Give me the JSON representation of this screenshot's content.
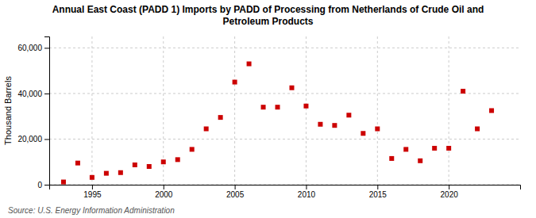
{
  "chart_data": {
    "type": "scatter",
    "title": "Annual East Coast (PADD 1) Imports by PADD of Processing from Netherlands of Crude Oil and\nPetroleum Products",
    "y_label": "Thousand Barrels",
    "source": "Source: U.S. Energy Information Administration",
    "x": [
      1993,
      1994,
      1995,
      1996,
      1997,
      1998,
      1999,
      2000,
      2001,
      2002,
      2003,
      2004,
      2005,
      2006,
      2007,
      2008,
      2009,
      2010,
      2011,
      2012,
      2013,
      2014,
      2015,
      2016,
      2017,
      2018,
      2019,
      2020,
      2021,
      2022,
      2023
    ],
    "values": [
      1200,
      9500,
      3200,
      5000,
      5300,
      8700,
      8000,
      10000,
      11000,
      15500,
      24500,
      29500,
      45000,
      53000,
      34000,
      34000,
      42500,
      34500,
      26500,
      26000,
      30500,
      22500,
      24500,
      11500,
      15500,
      10500,
      16000,
      16000,
      41000,
      24500,
      32500
    ],
    "color": "#cc0000",
    "marker": "square",
    "xlim": [
      1992,
      2025
    ],
    "xticks": [
      1995,
      2000,
      2005,
      2010,
      2015,
      2020
    ],
    "ylim": [
      0,
      65000
    ],
    "yticks": [
      0,
      {
        "value": 20000,
        "label": "20,000"
      },
      {
        "value": 40000,
        "label": "40,000"
      },
      {
        "value": 60000,
        "label": "60,000"
      }
    ],
    "grid": true
  }
}
